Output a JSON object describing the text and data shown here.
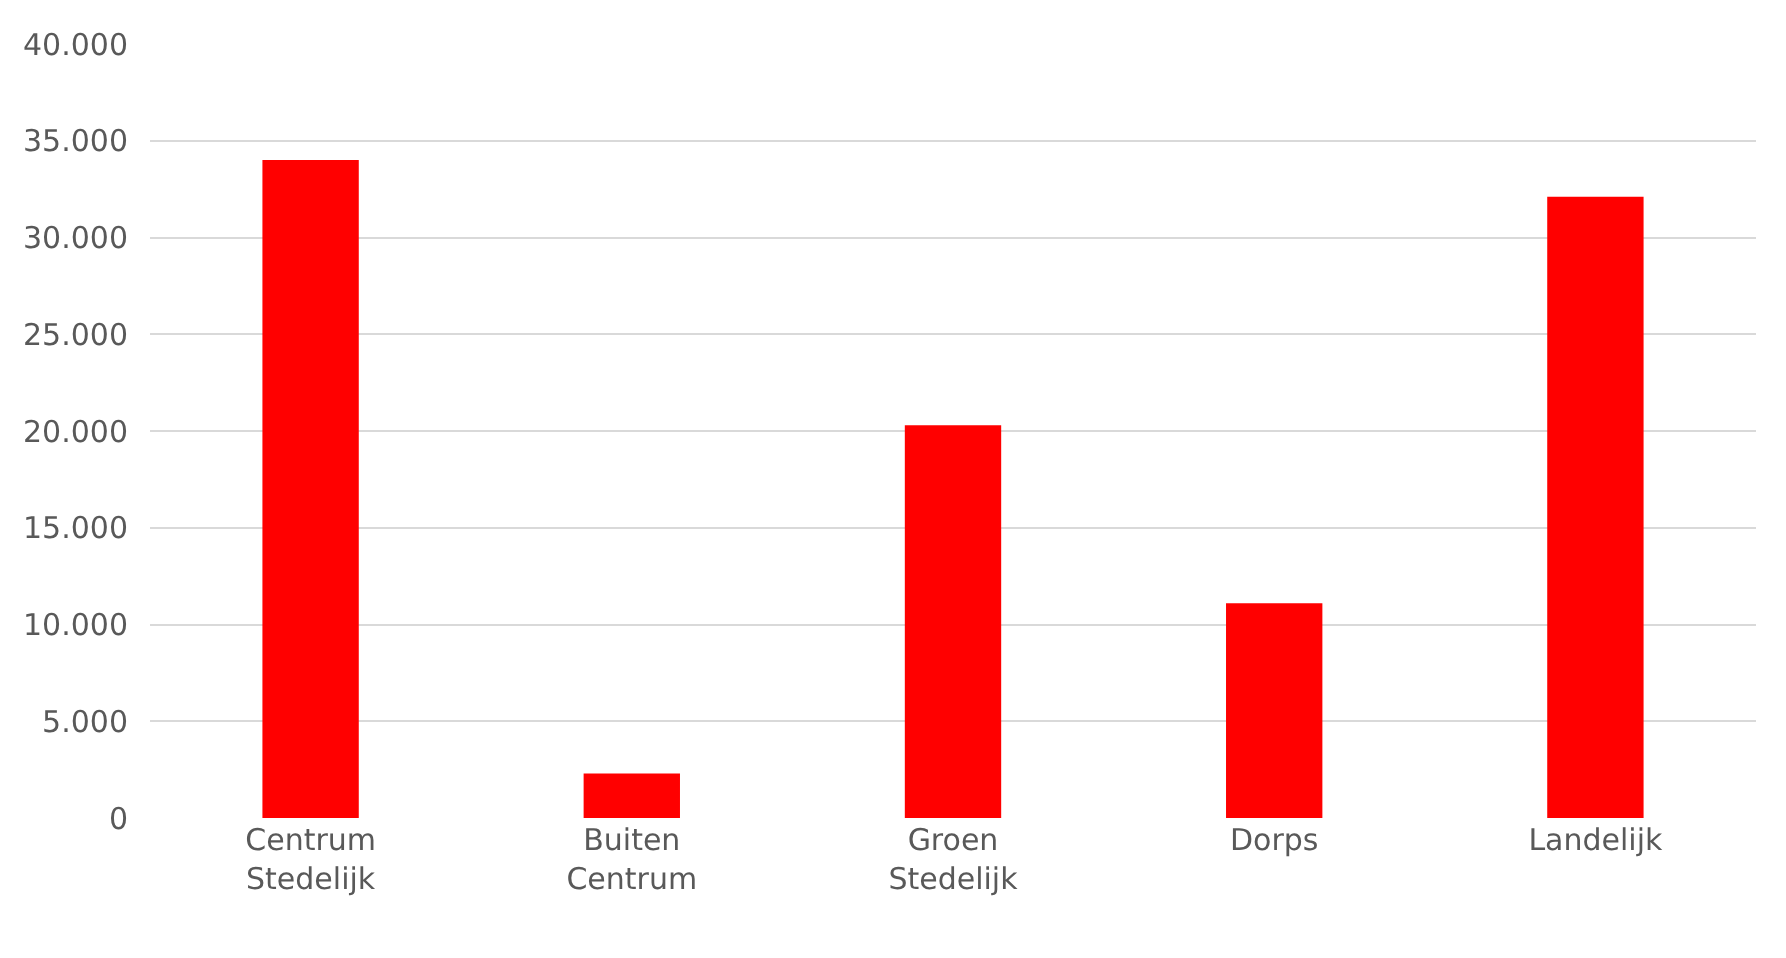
{
  "chart_data": {
    "type": "bar",
    "categories": [
      "Centrum Stedelijk",
      "Buiten Centrum",
      "Groen Stedelijk",
      "Dorps",
      "Landelijk"
    ],
    "values": [
      34000,
      2300,
      20300,
      11100,
      32100
    ],
    "color": "#ff0000",
    "ylim": [
      0,
      40000
    ],
    "yticks": [
      0,
      {
        "value": 5000,
        "label": "5.000"
      },
      {
        "value": 10000,
        "label": "10.000"
      },
      {
        "value": 15000,
        "label": "15.000"
      },
      {
        "value": 20000,
        "label": "20.000"
      },
      {
        "value": 25000,
        "label": "25.000"
      },
      {
        "value": 30000,
        "label": "30.000"
      },
      {
        "value": 35000,
        "label": "35.000"
      },
      {
        "value": 40000,
        "label": "40.000"
      }
    ],
    "grid": "y"
  }
}
